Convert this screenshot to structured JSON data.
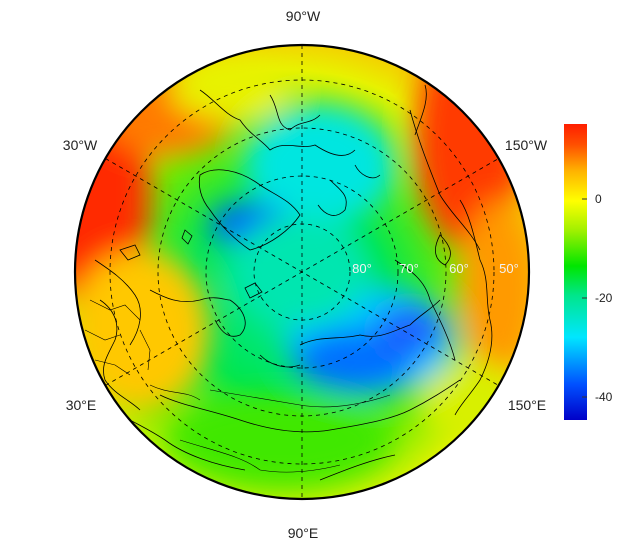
{
  "map": {
    "projection": "north-polar-stereographic",
    "colormap": [
      "#0000c8",
      "#0050ff",
      "#00e6ff",
      "#00e68c",
      "#00e600",
      "#a0f000",
      "#ffff00",
      "#ffb400",
      "#ff5000",
      "#ff1e00"
    ],
    "longitude_labels": [
      {
        "id": "lon-90w",
        "text": "90°W"
      },
      {
        "id": "lon-30w",
        "text": "30°W"
      },
      {
        "id": "lon-150w",
        "text": "150°W"
      },
      {
        "id": "lon-30e",
        "text": "30°E"
      },
      {
        "id": "lon-150e",
        "text": "150°E"
      },
      {
        "id": "lon-90e",
        "text": "90°E"
      }
    ],
    "latitude_labels": [
      {
        "id": "lat-80",
        "text": "80°"
      },
      {
        "id": "lat-70",
        "text": "70°"
      },
      {
        "id": "lat-60",
        "text": "60°"
      },
      {
        "id": "lat-50",
        "text": "50°"
      }
    ],
    "colorbar": {
      "ticks": [
        "0",
        "-20",
        "-40"
      ],
      "range": [
        -45,
        15
      ]
    }
  }
}
